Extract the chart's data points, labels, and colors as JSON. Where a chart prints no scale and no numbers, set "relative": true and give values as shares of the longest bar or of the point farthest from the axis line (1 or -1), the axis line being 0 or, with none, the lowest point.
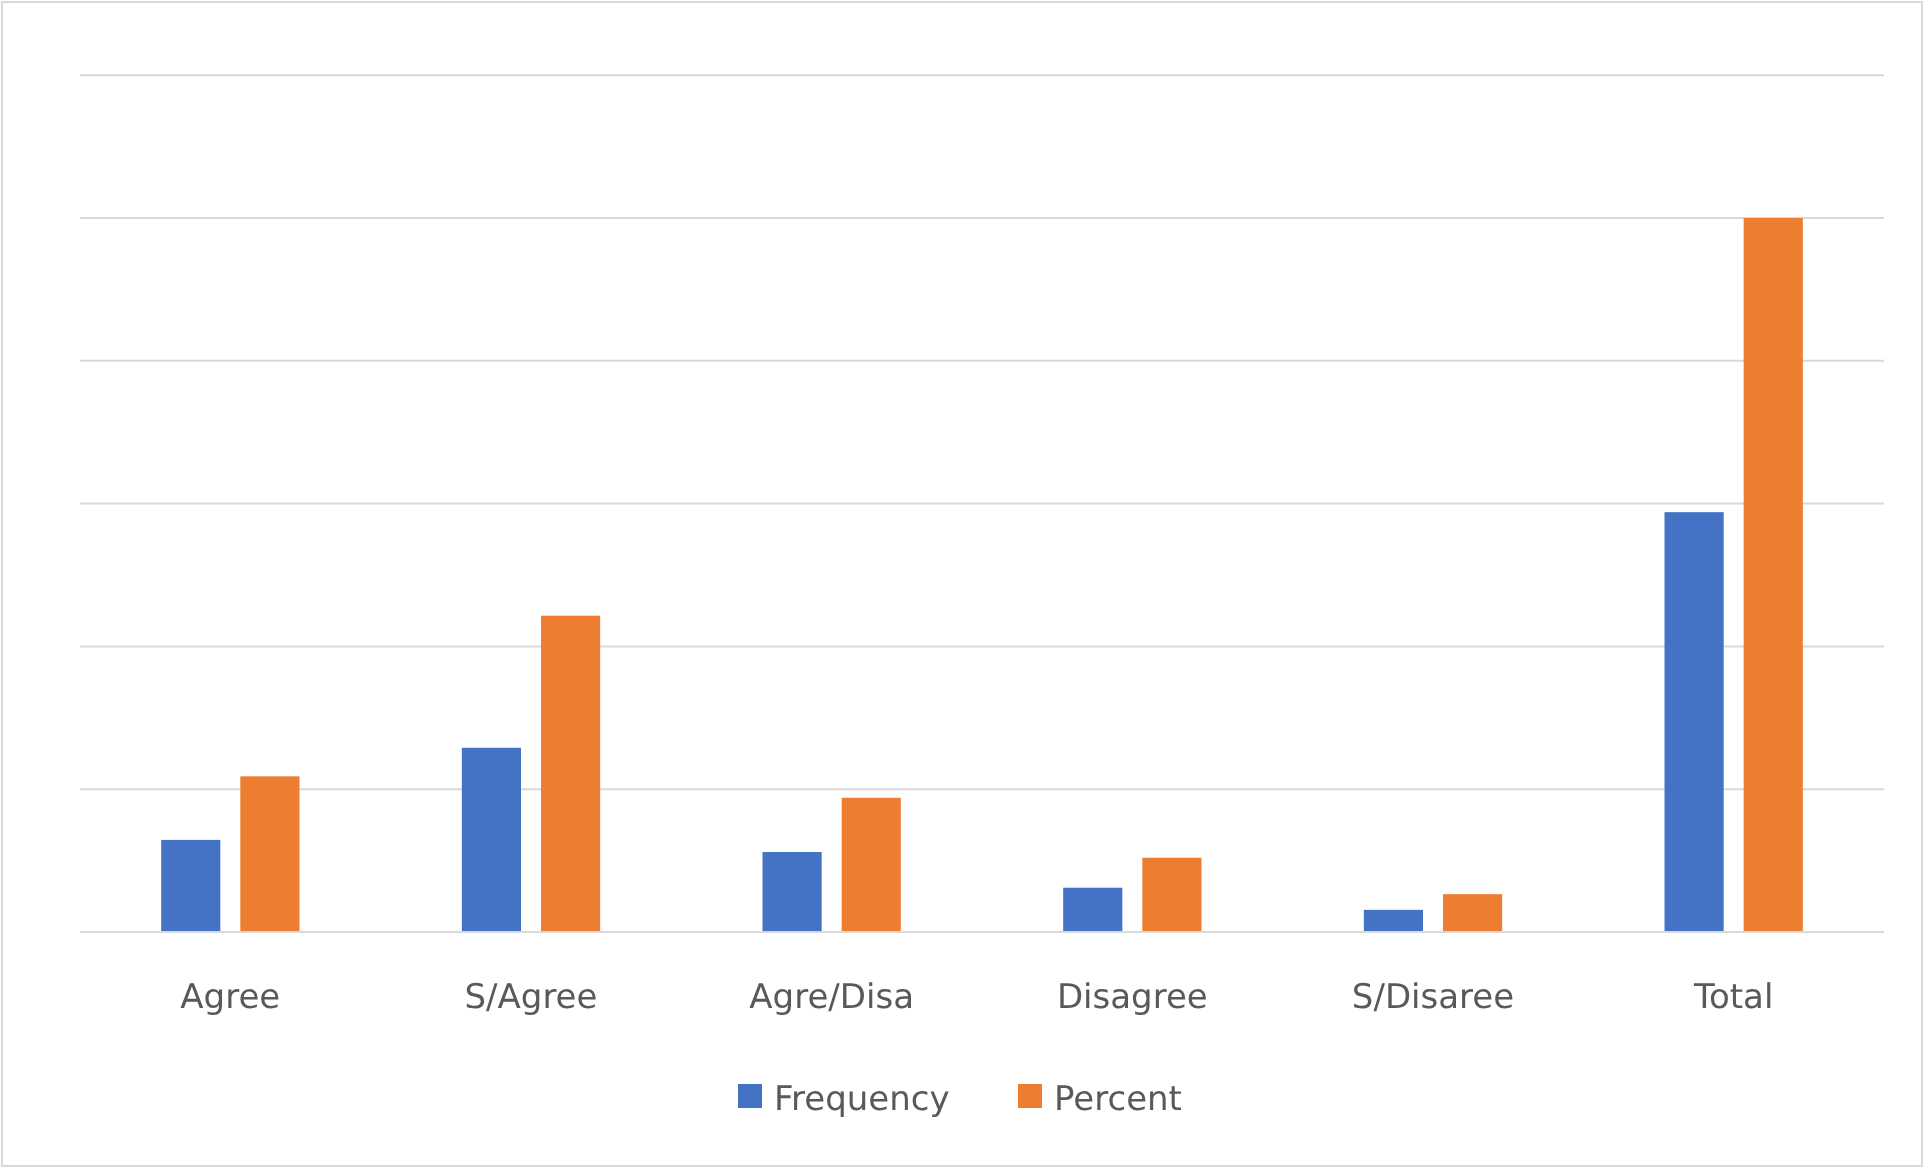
{
  "chart_data": {
    "type": "bar",
    "relative": true,
    "categories": [
      "Agree",
      "S/Agree",
      "Agre/Disa",
      "Disagree",
      "S/Disaree",
      "Total"
    ],
    "series": [
      {
        "name": "Frequency",
        "color": "#4472c4",
        "values": [
          0.129,
          0.258,
          0.112,
          0.062,
          0.031,
          0.588
        ]
      },
      {
        "name": "Percent",
        "color": "#ed7d31",
        "values": [
          0.218,
          0.443,
          0.188,
          0.104,
          0.053,
          1
        ]
      }
    ],
    "grid": true,
    "legend": "bottom"
  }
}
